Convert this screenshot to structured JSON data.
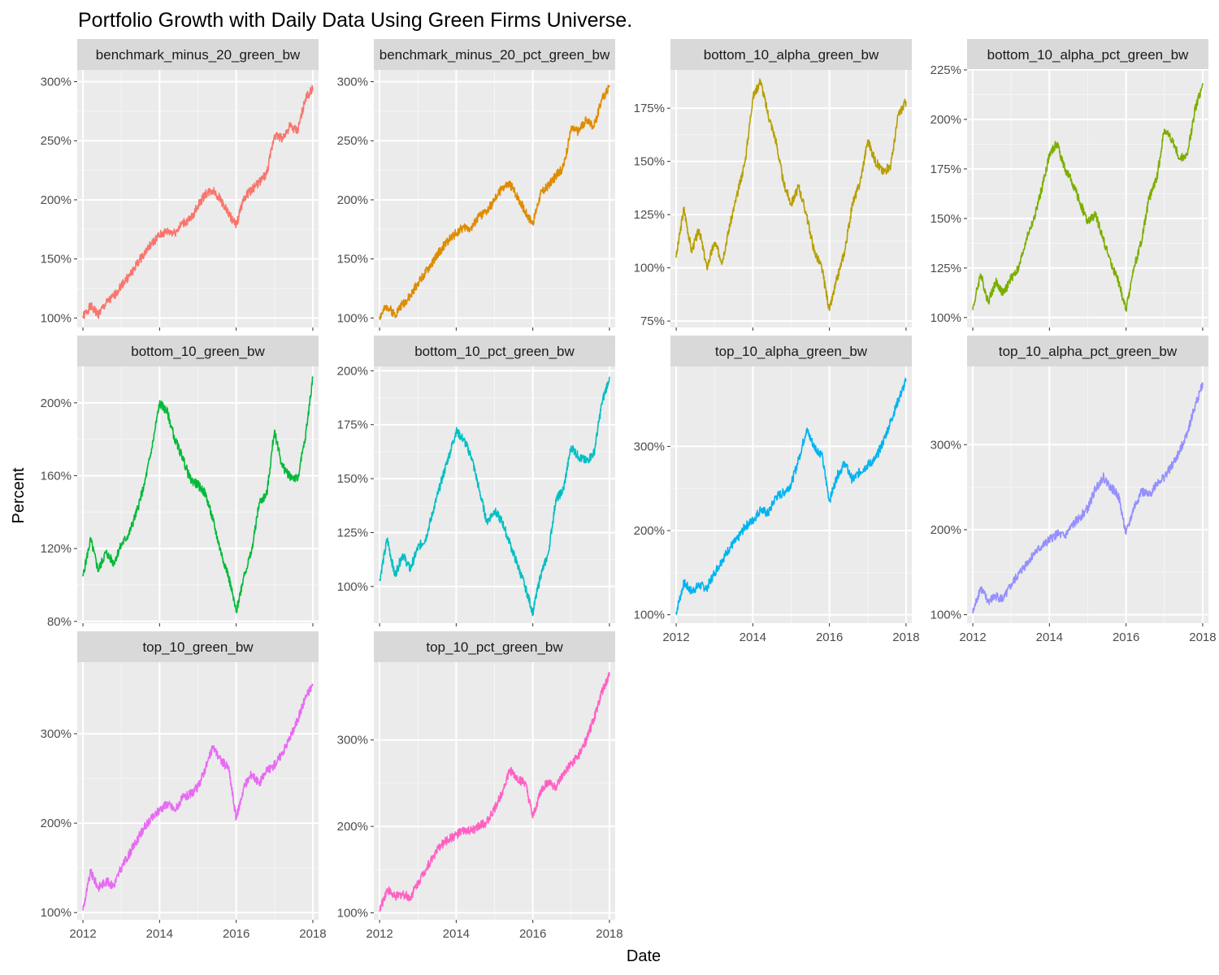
{
  "chart_data": {
    "type": "line",
    "title": "Portfolio Growth with Daily Data Using Green Firms Universe.",
    "xlabel": "Date",
    "ylabel": "Percent",
    "x_ticks": [
      "2012",
      "2014",
      "2016",
      "2018"
    ],
    "x_tick_values": [
      2012,
      2014,
      2016,
      2018
    ],
    "xlim": [
      2011.85,
      2018.15
    ],
    "grid": true,
    "facets": "free_y",
    "panels": [
      {
        "name": "benchmark_minus_20_green_bw",
        "color": "#F8766D",
        "y_ticks": [
          "100%",
          "150%",
          "200%",
          "250%",
          "300%"
        ],
        "y_tick_values": [
          100,
          150,
          200,
          250,
          300
        ],
        "ylim": [
          92,
          310
        ],
        "x": [
          2012.0,
          2012.2,
          2012.4,
          2012.6,
          2012.8,
          2013.0,
          2013.2,
          2013.4,
          2013.6,
          2013.8,
          2014.0,
          2014.2,
          2014.4,
          2014.6,
          2014.8,
          2015.0,
          2015.2,
          2015.4,
          2015.6,
          2015.8,
          2016.0,
          2016.2,
          2016.4,
          2016.6,
          2016.8,
          2017.0,
          2017.2,
          2017.4,
          2017.6,
          2017.8,
          2018.0
        ],
        "y": [
          101,
          110,
          103,
          112,
          118,
          128,
          135,
          145,
          155,
          163,
          170,
          173,
          172,
          180,
          183,
          195,
          205,
          208,
          200,
          188,
          178,
          202,
          208,
          215,
          222,
          255,
          252,
          262,
          258,
          285,
          295
        ]
      },
      {
        "name": "benchmark_minus_20_pct_green_bw",
        "color": "#DE8C00",
        "y_ticks": [
          "100%",
          "150%",
          "200%",
          "250%",
          "300%"
        ],
        "y_tick_values": [
          100,
          150,
          200,
          250,
          300
        ],
        "ylim": [
          92,
          310
        ],
        "x": [
          2012.0,
          2012.2,
          2012.4,
          2012.6,
          2012.8,
          2013.0,
          2013.2,
          2013.4,
          2013.6,
          2013.8,
          2014.0,
          2014.2,
          2014.4,
          2014.6,
          2014.8,
          2015.0,
          2015.2,
          2015.4,
          2015.6,
          2015.8,
          2016.0,
          2016.2,
          2016.4,
          2016.6,
          2016.8,
          2017.0,
          2017.2,
          2017.4,
          2017.6,
          2017.8,
          2018.0
        ],
        "y": [
          101,
          110,
          103,
          112,
          118,
          130,
          138,
          148,
          158,
          166,
          172,
          177,
          176,
          186,
          190,
          200,
          210,
          213,
          203,
          190,
          180,
          205,
          212,
          220,
          228,
          260,
          258,
          268,
          262,
          285,
          296
        ]
      },
      {
        "name": "bottom_10_alpha_green_bw",
        "color": "#B79F00",
        "y_ticks": [
          "75%",
          "100%",
          "125%",
          "150%",
          "175%"
        ],
        "y_tick_values": [
          75,
          100,
          125,
          150,
          175
        ],
        "ylim": [
          72,
          193
        ],
        "x": [
          2012.0,
          2012.2,
          2012.4,
          2012.6,
          2012.8,
          2013.0,
          2013.2,
          2013.4,
          2013.6,
          2013.8,
          2014.0,
          2014.2,
          2014.4,
          2014.6,
          2014.8,
          2015.0,
          2015.2,
          2015.4,
          2015.6,
          2015.8,
          2016.0,
          2016.2,
          2016.4,
          2016.6,
          2016.8,
          2017.0,
          2017.2,
          2017.4,
          2017.6,
          2017.8,
          2018.0
        ],
        "y": [
          105,
          128,
          108,
          118,
          100,
          112,
          103,
          120,
          135,
          150,
          180,
          188,
          172,
          160,
          140,
          130,
          138,
          125,
          108,
          100,
          80,
          95,
          108,
          130,
          140,
          160,
          150,
          145,
          148,
          172,
          178
        ]
      },
      {
        "name": "bottom_10_alpha_pct_green_bw",
        "color": "#7CAE00",
        "y_ticks": [
          "100%",
          "125%",
          "150%",
          "175%",
          "200%",
          "225%"
        ],
        "y_tick_values": [
          100,
          125,
          150,
          175,
          200,
          225
        ],
        "ylim": [
          95,
          225
        ],
        "x": [
          2012.0,
          2012.2,
          2012.4,
          2012.6,
          2012.8,
          2013.0,
          2013.2,
          2013.4,
          2013.6,
          2013.8,
          2014.0,
          2014.2,
          2014.4,
          2014.6,
          2014.8,
          2015.0,
          2015.2,
          2015.4,
          2015.6,
          2015.8,
          2016.0,
          2016.2,
          2016.4,
          2016.6,
          2016.8,
          2017.0,
          2017.2,
          2017.4,
          2017.6,
          2017.8,
          2018.0
        ],
        "y": [
          104,
          122,
          108,
          118,
          112,
          120,
          125,
          140,
          150,
          165,
          182,
          188,
          175,
          168,
          158,
          148,
          152,
          140,
          128,
          118,
          104,
          125,
          138,
          160,
          170,
          195,
          190,
          180,
          182,
          205,
          218
        ]
      },
      {
        "name": "bottom_10_green_bw",
        "color": "#00BA38",
        "y_ticks": [
          "80%",
          "120%",
          "160%",
          "200%"
        ],
        "y_tick_values": [
          80,
          120,
          160,
          200
        ],
        "ylim": [
          79,
          220
        ],
        "x": [
          2012.0,
          2012.2,
          2012.4,
          2012.6,
          2012.8,
          2013.0,
          2013.2,
          2013.4,
          2013.6,
          2013.8,
          2014.0,
          2014.2,
          2014.4,
          2014.6,
          2014.8,
          2015.0,
          2015.2,
          2015.4,
          2015.6,
          2015.8,
          2016.0,
          2016.2,
          2016.4,
          2016.6,
          2016.8,
          2017.0,
          2017.2,
          2017.4,
          2017.6,
          2017.8,
          2018.0
        ],
        "y": [
          105,
          125,
          108,
          118,
          112,
          122,
          128,
          140,
          155,
          175,
          200,
          195,
          180,
          170,
          158,
          155,
          150,
          135,
          118,
          105,
          85,
          105,
          118,
          145,
          150,
          185,
          165,
          160,
          158,
          180,
          214
        ]
      },
      {
        "name": "bottom_10_pct_green_bw",
        "color": "#00BFC4",
        "y_ticks": [
          "100%",
          "125%",
          "150%",
          "175%",
          "200%"
        ],
        "y_tick_values": [
          100,
          125,
          150,
          175,
          200
        ],
        "ylim": [
          83,
          202
        ],
        "x": [
          2012.0,
          2012.2,
          2012.4,
          2012.6,
          2012.8,
          2013.0,
          2013.2,
          2013.4,
          2013.6,
          2013.8,
          2014.0,
          2014.2,
          2014.4,
          2014.6,
          2014.8,
          2015.0,
          2015.2,
          2015.4,
          2015.6,
          2015.8,
          2016.0,
          2016.2,
          2016.4,
          2016.6,
          2016.8,
          2017.0,
          2017.2,
          2017.4,
          2017.6,
          2017.8,
          2018.0
        ],
        "y": [
          103,
          122,
          105,
          115,
          108,
          118,
          122,
          135,
          148,
          160,
          172,
          168,
          160,
          145,
          130,
          135,
          130,
          120,
          110,
          100,
          88,
          105,
          115,
          140,
          145,
          165,
          160,
          158,
          162,
          185,
          197
        ]
      },
      {
        "name": "top_10_alpha_green_bw",
        "color": "#00B4F0",
        "y_ticks": [
          "100%",
          "200%",
          "300%"
        ],
        "y_tick_values": [
          100,
          200,
          300
        ],
        "ylim": [
          90,
          395
        ],
        "x": [
          2012.0,
          2012.2,
          2012.4,
          2012.6,
          2012.8,
          2013.0,
          2013.2,
          2013.4,
          2013.6,
          2013.8,
          2014.0,
          2014.2,
          2014.4,
          2014.6,
          2014.8,
          2015.0,
          2015.2,
          2015.4,
          2015.6,
          2015.8,
          2016.0,
          2016.2,
          2016.4,
          2016.6,
          2016.8,
          2017.0,
          2017.2,
          2017.4,
          2017.6,
          2017.8,
          2018.0
        ],
        "y": [
          103,
          138,
          128,
          135,
          132,
          150,
          165,
          180,
          190,
          205,
          212,
          225,
          220,
          240,
          245,
          255,
          285,
          320,
          300,
          290,
          235,
          265,
          280,
          260,
          270,
          278,
          285,
          305,
          330,
          355,
          378
        ]
      },
      {
        "name": "top_10_alpha_pct_green_bw",
        "color": "#9590FF",
        "y_ticks": [
          "100%",
          "200%",
          "300%"
        ],
        "y_tick_values": [
          100,
          200,
          300
        ],
        "ylim": [
          90,
          392
        ],
        "x": [
          2012.0,
          2012.2,
          2012.4,
          2012.6,
          2012.8,
          2013.0,
          2013.2,
          2013.4,
          2013.6,
          2013.8,
          2014.0,
          2014.2,
          2014.4,
          2014.6,
          2014.8,
          2015.0,
          2015.2,
          2015.4,
          2015.6,
          2015.8,
          2016.0,
          2016.2,
          2016.4,
          2016.6,
          2016.8,
          2017.0,
          2017.2,
          2017.4,
          2017.6,
          2017.8,
          2018.0
        ],
        "y": [
          102,
          132,
          115,
          122,
          118,
          135,
          148,
          160,
          172,
          180,
          188,
          195,
          192,
          205,
          215,
          225,
          248,
          262,
          250,
          240,
          195,
          225,
          245,
          240,
          255,
          262,
          275,
          292,
          315,
          345,
          372
        ]
      },
      {
        "name": "top_10_green_bw",
        "color": "#E76BF3",
        "y_ticks": [
          "100%",
          "200%",
          "300%"
        ],
        "y_tick_values": [
          100,
          200,
          300
        ],
        "ylim": [
          92,
          380
        ],
        "x": [
          2012.0,
          2012.2,
          2012.4,
          2012.6,
          2012.8,
          2013.0,
          2013.2,
          2013.4,
          2013.6,
          2013.8,
          2014.0,
          2014.2,
          2014.4,
          2014.6,
          2014.8,
          2015.0,
          2015.2,
          2015.4,
          2015.6,
          2015.8,
          2016.0,
          2016.2,
          2016.4,
          2016.6,
          2016.8,
          2017.0,
          2017.2,
          2017.4,
          2017.6,
          2017.8,
          2018.0
        ],
        "y": [
          103,
          145,
          128,
          135,
          130,
          150,
          165,
          180,
          195,
          205,
          215,
          222,
          215,
          228,
          232,
          240,
          262,
          285,
          270,
          262,
          205,
          240,
          255,
          245,
          258,
          265,
          278,
          295,
          315,
          340,
          355
        ]
      },
      {
        "name": "top_10_pct_green_bw",
        "color": "#FF61C3",
        "y_ticks": [
          "100%",
          "200%",
          "300%"
        ],
        "y_tick_values": [
          100,
          200,
          300
        ],
        "ylim": [
          92,
          390
        ],
        "x": [
          2012.0,
          2012.2,
          2012.4,
          2012.6,
          2012.8,
          2013.0,
          2013.2,
          2013.4,
          2013.6,
          2013.8,
          2014.0,
          2014.2,
          2014.4,
          2014.6,
          2014.8,
          2015.0,
          2015.2,
          2015.4,
          2015.6,
          2015.8,
          2016.0,
          2016.2,
          2016.4,
          2016.6,
          2016.8,
          2017.0,
          2017.2,
          2017.4,
          2017.6,
          2017.8,
          2018.0
        ],
        "y": [
          102,
          128,
          118,
          122,
          118,
          135,
          150,
          165,
          178,
          185,
          190,
          195,
          195,
          200,
          205,
          220,
          240,
          265,
          255,
          250,
          210,
          240,
          252,
          245,
          260,
          272,
          282,
          300,
          325,
          355,
          375
        ]
      }
    ]
  }
}
